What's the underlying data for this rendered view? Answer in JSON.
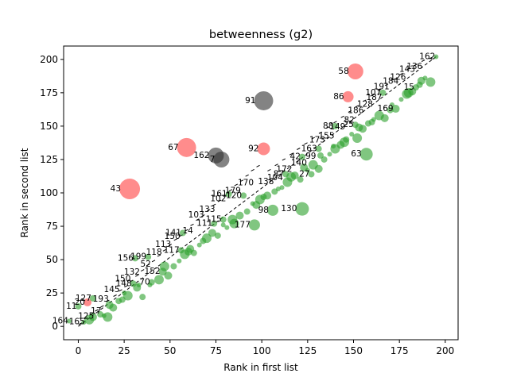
{
  "chart_data": {
    "type": "scatter",
    "title": "betweenness (g2)",
    "xlabel": "Rank in first list",
    "ylabel": "Rank in second list",
    "xlim": [
      -8,
      207
    ],
    "ylim": [
      -10,
      210
    ],
    "xticks": [
      0,
      25,
      50,
      75,
      100,
      125,
      150,
      175,
      200
    ],
    "yticks": [
      0,
      25,
      50,
      75,
      100,
      125,
      150,
      175,
      200
    ],
    "grid": false,
    "colors": {
      "above": "#ff4040",
      "below": "#2ca02c",
      "large": "#303030",
      "diagonal": "#000000"
    },
    "diagonal": [
      [
        0,
        0
      ],
      [
        195,
        202
      ]
    ],
    "labeled_points": [
      {
        "label": "58",
        "x": 151,
        "y": 191,
        "size": 20,
        "color": "above"
      },
      {
        "label": "86",
        "x": 147,
        "y": 172,
        "size": 14,
        "color": "above"
      },
      {
        "label": "91",
        "x": 101,
        "y": 169,
        "size": 24,
        "color": "large"
      },
      {
        "label": "92",
        "x": 101,
        "y": 133,
        "size": 16,
        "color": "above"
      },
      {
        "label": "67",
        "x": 59,
        "y": 134,
        "size": 24,
        "color": "above"
      },
      {
        "label": "162",
        "x": 75,
        "y": 128,
        "size": 20,
        "color": "large"
      },
      {
        "label": "7",
        "x": 78,
        "y": 125,
        "size": 20,
        "color": "large"
      },
      {
        "label": "43",
        "x": 28,
        "y": 103,
        "size": 26,
        "color": "above"
      },
      {
        "label": "63",
        "x": 157,
        "y": 129,
        "size": 16,
        "color": "below"
      },
      {
        "label": "130",
        "x": 122,
        "y": 88,
        "size": 17,
        "color": "below"
      },
      {
        "label": "98",
        "x": 106,
        "y": 87,
        "size": 14,
        "color": "below"
      },
      {
        "label": "177",
        "x": 96,
        "y": 76,
        "size": 14,
        "color": "below"
      },
      {
        "label": "163",
        "x": 131,
        "y": 133,
        "size": 8,
        "color": "below"
      },
      {
        "label": "42",
        "x": 122,
        "y": 127,
        "size": 8,
        "color": "below"
      },
      {
        "label": "87",
        "x": 113,
        "y": 114,
        "size": 8,
        "color": "below"
      },
      {
        "label": "27",
        "x": 127,
        "y": 114,
        "size": 8,
        "color": "below"
      },
      {
        "label": "88",
        "x": 140,
        "y": 150,
        "size": 8,
        "color": "below"
      },
      {
        "label": "25",
        "x": 151,
        "y": 151,
        "size": 8,
        "color": "below"
      },
      {
        "label": "169",
        "x": 173,
        "y": 163,
        "size": 10,
        "color": "below"
      },
      {
        "label": "162",
        "x": 195,
        "y": 202,
        "size": 6,
        "color": "below"
      },
      {
        "label": "107",
        "x": 166,
        "y": 175,
        "size": 8,
        "color": "below"
      },
      {
        "label": "15",
        "x": 184,
        "y": 179,
        "size": 8,
        "color": "below"
      },
      {
        "label": "161",
        "x": 82,
        "y": 99,
        "size": 8,
        "color": "below"
      },
      {
        "label": "120",
        "x": 90,
        "y": 98,
        "size": 8,
        "color": "below"
      },
      {
        "label": "111",
        "x": 74,
        "y": 77,
        "size": 8,
        "color": "below"
      },
      {
        "label": "115",
        "x": 79,
        "y": 80,
        "size": 8,
        "color": "below"
      },
      {
        "label": "141",
        "x": 57,
        "y": 70,
        "size": 8,
        "color": "below"
      },
      {
        "label": "117",
        "x": 56,
        "y": 57,
        "size": 8,
        "color": "below"
      },
      {
        "label": "156",
        "x": 31,
        "y": 51,
        "size": 8,
        "color": "below"
      },
      {
        "label": "199",
        "x": 38,
        "y": 52,
        "size": 8,
        "color": "below"
      },
      {
        "label": "152",
        "x": 46,
        "y": 41,
        "size": 10,
        "color": "below"
      },
      {
        "label": "70",
        "x": 40,
        "y": 33,
        "size": 8,
        "color": "below"
      },
      {
        "label": "148",
        "x": 30,
        "y": 32,
        "size": 8,
        "color": "below"
      },
      {
        "label": "20",
        "x": 5,
        "y": 18,
        "size": 10,
        "color": "above"
      },
      {
        "label": "11",
        "x": 0,
        "y": 15,
        "size": 8,
        "color": "below"
      },
      {
        "label": "127",
        "x": 8,
        "y": 21,
        "size": 8,
        "color": "below"
      },
      {
        "label": "164",
        "x": -5,
        "y": 4,
        "size": 6,
        "color": "below"
      }
    ],
    "below_points": [
      [
        3,
        3
      ],
      [
        6,
        5
      ],
      [
        8,
        7
      ],
      [
        12,
        9
      ],
      [
        14,
        8
      ],
      [
        16,
        7
      ],
      [
        19,
        14
      ],
      [
        22,
        19
      ],
      [
        25,
        25
      ],
      [
        27,
        23
      ],
      [
        32,
        29
      ],
      [
        35,
        22
      ],
      [
        39,
        31
      ],
      [
        44,
        35
      ],
      [
        49,
        38
      ],
      [
        52,
        45
      ],
      [
        55,
        49
      ],
      [
        58,
        54
      ],
      [
        61,
        58
      ],
      [
        63,
        55
      ],
      [
        66,
        61
      ],
      [
        70,
        66
      ],
      [
        73,
        70
      ],
      [
        76,
        68
      ],
      [
        81,
        74
      ],
      [
        85,
        77
      ],
      [
        88,
        83
      ],
      [
        92,
        86
      ],
      [
        95,
        92
      ],
      [
        99,
        95
      ],
      [
        103,
        98
      ],
      [
        107,
        101
      ],
      [
        111,
        104
      ],
      [
        114,
        108
      ],
      [
        118,
        113
      ],
      [
        121,
        110
      ],
      [
        125,
        117
      ],
      [
        128,
        121
      ],
      [
        131,
        118
      ],
      [
        134,
        125
      ],
      [
        137,
        129
      ],
      [
        140,
        133
      ],
      [
        143,
        136
      ],
      [
        146,
        140
      ],
      [
        149,
        144
      ],
      [
        152,
        141
      ],
      [
        155,
        148
      ],
      [
        158,
        152
      ],
      [
        161,
        155
      ],
      [
        164,
        158
      ],
      [
        167,
        156
      ],
      [
        170,
        162
      ],
      [
        176,
        170
      ],
      [
        179,
        174
      ],
      [
        182,
        176
      ],
      [
        186,
        181
      ],
      [
        189,
        186
      ],
      [
        192,
        183
      ],
      [
        17,
        16
      ],
      [
        24,
        20
      ],
      [
        33,
        31
      ],
      [
        47,
        45
      ],
      [
        60,
        56
      ],
      [
        68,
        64
      ],
      [
        79,
        76
      ],
      [
        84,
        80
      ],
      [
        97,
        91
      ],
      [
        101,
        97
      ],
      [
        109,
        103
      ],
      [
        116,
        112
      ],
      [
        123,
        119
      ],
      [
        132,
        128
      ],
      [
        139,
        135
      ],
      [
        145,
        138
      ],
      [
        153,
        149
      ],
      [
        160,
        153
      ],
      [
        171,
        166
      ],
      [
        180,
        175
      ],
      [
        187,
        184
      ]
    ],
    "diag_points": [
      [
        1,
        2
      ],
      [
        4,
        6
      ],
      [
        7,
        9
      ],
      [
        10,
        12
      ],
      [
        13,
        15
      ],
      [
        16,
        19
      ],
      [
        20,
        23
      ],
      [
        23,
        27
      ],
      [
        26,
        30
      ],
      [
        29,
        34
      ],
      [
        32,
        38
      ],
      [
        35,
        42
      ],
      [
        38,
        46
      ],
      [
        41,
        49
      ],
      [
        44,
        53
      ],
      [
        47,
        57
      ],
      [
        50,
        61
      ],
      [
        53,
        65
      ],
      [
        56,
        68
      ],
      [
        59,
        72
      ],
      [
        62,
        76
      ],
      [
        65,
        80
      ],
      [
        68,
        83
      ],
      [
        71,
        87
      ],
      [
        74,
        91
      ],
      [
        77,
        94
      ],
      [
        80,
        98
      ],
      [
        83,
        102
      ],
      [
        86,
        106
      ],
      [
        89,
        109
      ],
      [
        92,
        113
      ],
      [
        95,
        117
      ],
      [
        98,
        120
      ],
      [
        104,
        117
      ],
      [
        108,
        121
      ],
      [
        112,
        125
      ],
      [
        116,
        129
      ],
      [
        120,
        133
      ],
      [
        124,
        137
      ],
      [
        128,
        141
      ],
      [
        132,
        145
      ],
      [
        136,
        149
      ],
      [
        140,
        153
      ],
      [
        144,
        157
      ],
      [
        148,
        161
      ],
      [
        152,
        165
      ],
      [
        156,
        169
      ],
      [
        160,
        173
      ],
      [
        164,
        177
      ],
      [
        168,
        181
      ],
      [
        172,
        185
      ],
      [
        176,
        189
      ],
      [
        180,
        193
      ],
      [
        184,
        196
      ],
      [
        188,
        199
      ],
      [
        192,
        201
      ]
    ],
    "diag_labels": [
      {
        "label": "165",
        "x": 1,
        "y": 4
      },
      {
        "label": "125",
        "x": 6,
        "y": 8
      },
      {
        "label": "17",
        "x": 10,
        "y": 12
      },
      {
        "label": "193",
        "x": 14,
        "y": 21
      },
      {
        "label": "145",
        "x": 20,
        "y": 28
      },
      {
        "label": "150",
        "x": 26,
        "y": 36
      },
      {
        "label": "132",
        "x": 31,
        "y": 41
      },
      {
        "label": "52",
        "x": 37,
        "y": 47
      },
      {
        "label": "118",
        "x": 43,
        "y": 56
      },
      {
        "label": "113",
        "x": 48,
        "y": 62
      },
      {
        "label": "150",
        "x": 53,
        "y": 68
      },
      {
        "label": "14",
        "x": 60,
        "y": 72
      },
      {
        "label": "103",
        "x": 66,
        "y": 84
      },
      {
        "label": "133",
        "x": 72,
        "y": 88
      },
      {
        "label": "102",
        "x": 78,
        "y": 96
      },
      {
        "label": "179",
        "x": 86,
        "y": 102
      },
      {
        "label": "170",
        "x": 93,
        "y": 108
      },
      {
        "label": "138",
        "x": 104,
        "y": 109
      },
      {
        "label": "104",
        "x": 109,
        "y": 112
      },
      {
        "label": "172",
        "x": 114,
        "y": 118
      },
      {
        "label": "140",
        "x": 122,
        "y": 123
      },
      {
        "label": "99",
        "x": 127,
        "y": 128
      },
      {
        "label": "173",
        "x": 132,
        "y": 140
      },
      {
        "label": "155",
        "x": 137,
        "y": 143
      },
      {
        "label": "149",
        "x": 143,
        "y": 150
      },
      {
        "label": "82",
        "x": 148,
        "y": 155
      },
      {
        "label": "186",
        "x": 153,
        "y": 162
      },
      {
        "label": "128",
        "x": 158,
        "y": 167
      },
      {
        "label": "187",
        "x": 163,
        "y": 172
      },
      {
        "label": "191",
        "x": 167,
        "y": 180
      },
      {
        "label": "184",
        "x": 172,
        "y": 184
      },
      {
        "label": "126",
        "x": 176,
        "y": 187
      },
      {
        "label": "143",
        "x": 181,
        "y": 193
      },
      {
        "label": "136",
        "x": 185,
        "y": 195
      }
    ]
  }
}
